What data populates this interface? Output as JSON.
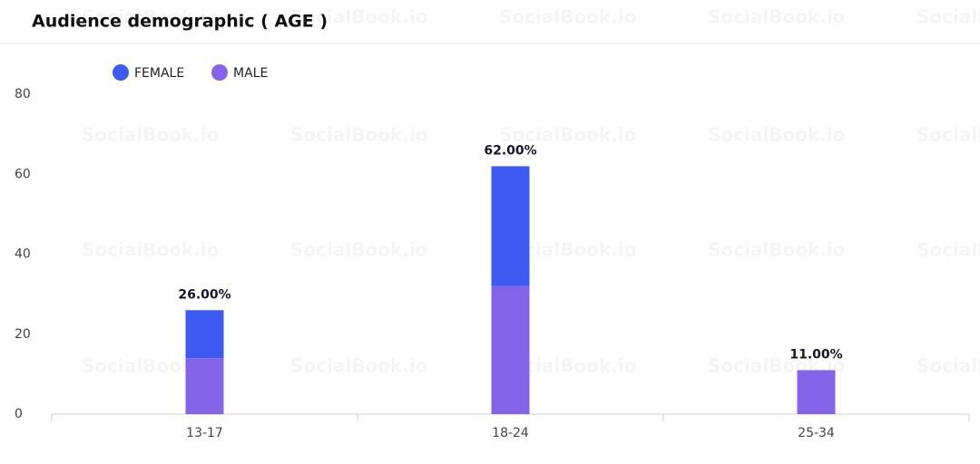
{
  "chart_data": {
    "type": "stacked-bar",
    "title": "Audience demographic ( AGE )",
    "watermark": "SocialBook.io",
    "categories": [
      "13-17",
      "18-24",
      "25-34"
    ],
    "series": [
      {
        "name": "FEMALE",
        "color": "#3d5af1",
        "values": [
          12,
          30,
          0
        ]
      },
      {
        "name": "MALE",
        "color": "#8464e8",
        "values": [
          14,
          32,
          11
        ]
      }
    ],
    "totals": [
      26,
      62,
      11
    ],
    "total_labels": [
      "26.00%",
      "62.00%",
      "11.00%"
    ],
    "ylim": [
      0,
      80
    ],
    "yticks": [
      0,
      20,
      40,
      60,
      80
    ],
    "grid": false,
    "legend": "top-left"
  }
}
